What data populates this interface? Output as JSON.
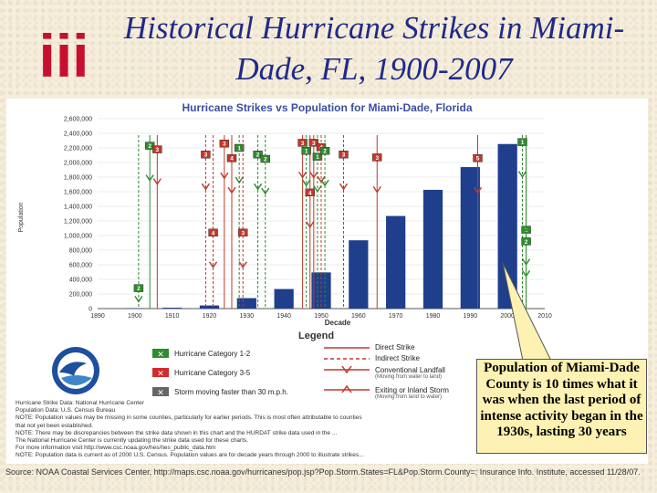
{
  "title": "Historical Hurricane Strikes in Miami-Dade, FL, 1900-2007",
  "logo_text": "iii",
  "brand_color": "#c8102e",
  "chart_data": {
    "type": "bar",
    "title": "Hurricane Strikes vs Population for Miami-Dade, Florida",
    "xlabel": "Decade",
    "ylabel": "Population",
    "ylim": [
      0,
      2600000
    ],
    "y_ticks": [
      0,
      200000,
      400000,
      600000,
      800000,
      1000000,
      1200000,
      1400000,
      1600000,
      1800000,
      2000000,
      2200000,
      2400000,
      2600000
    ],
    "y_tick_labels": [
      "0",
      "200,000",
      "400,000",
      "600,000",
      "800,000",
      "1,000,000",
      "1,200,000",
      "1,400,000",
      "1,600,000",
      "1,800,000",
      "2,000,000",
      "2,200,000",
      "2,400,000",
      "2,600,000"
    ],
    "x_ticks": [
      1890,
      1900,
      1910,
      1920,
      1930,
      1940,
      1950,
      1960,
      1970,
      1980,
      1990,
      2000,
      2010
    ],
    "x_tick_labels": [
      "1890",
      "1900",
      "1910",
      "1920",
      "1930",
      "1940",
      "1950",
      "1960",
      "1970",
      "1980",
      "1990",
      "2000",
      "2010"
    ],
    "bar_color": "#1f3f8c",
    "series": [
      {
        "name": "Population",
        "x": [
          1900,
          1910,
          1920,
          1930,
          1940,
          1950,
          1960,
          1970,
          1980,
          1990,
          2000
        ],
        "values": [
          4955,
          11933,
          42753,
          142955,
          267739,
          495084,
          935047,
          1267792,
          1625781,
          1937094,
          2253362
        ]
      }
    ],
    "strikes": [
      {
        "year": 1901,
        "category": 2,
        "type": "indirect",
        "marker_value": 280000
      },
      {
        "year": 1904,
        "category": 2,
        "type": "direct",
        "marker_value": 2230000
      },
      {
        "year": 1906,
        "category": 3,
        "type": "direct",
        "marker_value": 2180000
      },
      {
        "year": 1919,
        "category": 3,
        "type": "indirect",
        "marker_value": 2110000
      },
      {
        "year": 1921,
        "category": 4,
        "type": "indirect",
        "marker_value": 1040000
      },
      {
        "year": 1924,
        "category": 3,
        "type": "direct",
        "marker_value": 2260000
      },
      {
        "year": 1926,
        "category": 4,
        "type": "direct",
        "marker_value": 2060000
      },
      {
        "year": 1928,
        "category": 1,
        "type": "indirect",
        "marker_value": 2200000
      },
      {
        "year": 1929,
        "category": 3,
        "type": "indirect",
        "marker_value": 1040000
      },
      {
        "year": 1933,
        "category": 2,
        "type": "indirect",
        "marker_value": 2110000
      },
      {
        "year": 1935,
        "category": 2,
        "type": "indirect",
        "marker_value": 2050000
      },
      {
        "year": 1945,
        "category": 3,
        "type": "direct",
        "marker_value": 2270000
      },
      {
        "year": 1946,
        "category": 1,
        "type": "indirect",
        "marker_value": 2160000
      },
      {
        "year": 1947,
        "category": 4,
        "type": "direct",
        "marker_value": 1590000
      },
      {
        "year": 1948,
        "category": 3,
        "type": "direct",
        "marker_value": 2270000
      },
      {
        "year": 1949,
        "category": 1,
        "type": "indirect",
        "marker_value": 2080000
      },
      {
        "year": 1950,
        "category": 4,
        "type": "indirect",
        "marker_value": 2210000
      },
      {
        "year": 1951,
        "category": 2,
        "type": "indirect",
        "marker_value": 2160000
      },
      {
        "year": 1956,
        "category": 3,
        "type": "indirect",
        "marker_value": 2110000
      },
      {
        "year": 1965,
        "category": 3,
        "type": "direct",
        "marker_value": 2070000
      },
      {
        "year": 1992,
        "category": 5,
        "type": "direct",
        "marker_value": 2060000
      },
      {
        "year": 2004,
        "category": 1,
        "type": "indirect",
        "marker_value": 2280000
      },
      {
        "year": 2005,
        "category": 1,
        "type": "indirect",
        "marker_value": 1080000
      },
      {
        "year": 2005,
        "category": 2,
        "type": "direct",
        "marker_value": 920000
      }
    ]
  },
  "legend": {
    "title": "Legend",
    "cat12": "Hurricane Category 1-2",
    "cat35": "Hurricane Category 3-5",
    "slow": "Storm moving faster than 30 m.p.h.",
    "direct": "Direct Strike",
    "indirect": "Indirect Strike",
    "landfall": "Conventional Landfall",
    "landfall_sub": "(Moving from water to land)",
    "exiting": "Exiting or Inland Storm",
    "exiting_sub": "(Moving from land to water)"
  },
  "notes": [
    "Hurricane Strike Data: National Hurricane Center",
    "Population Data: U.S. Census Bureau",
    "NOTE: Population values may be missing in some counties, particularly for earlier periods. This is most often attributable to counties",
    "that not yet been established.",
    "NOTE: There may be discrepancies between the strike data shown in this chart and the HURDAT strike data used in the ...",
    "The National Hurricane Center is currently updating the strike data used for these charts.",
    "For more information visit http://www.csc.noaa.gov/hes/hes_public_data.htm",
    "NOTE: Population data is current as of 2000 U.S. Census. Population values are for decade years through 2000 to illustrate strikes..."
  ],
  "callout": "Population of Miami-Dade County is 10 times what it was when the last period of intense activity began in the 1930s, lasting 30 years",
  "source": "Source: NOAA Coastal Services Center, http://maps.csc.noaa.gov/hurricanes/pop.jsp?Pop.Storm.States=FL&Pop.Storm.County=; Insurance Info. Institute, accessed 11/28/07."
}
